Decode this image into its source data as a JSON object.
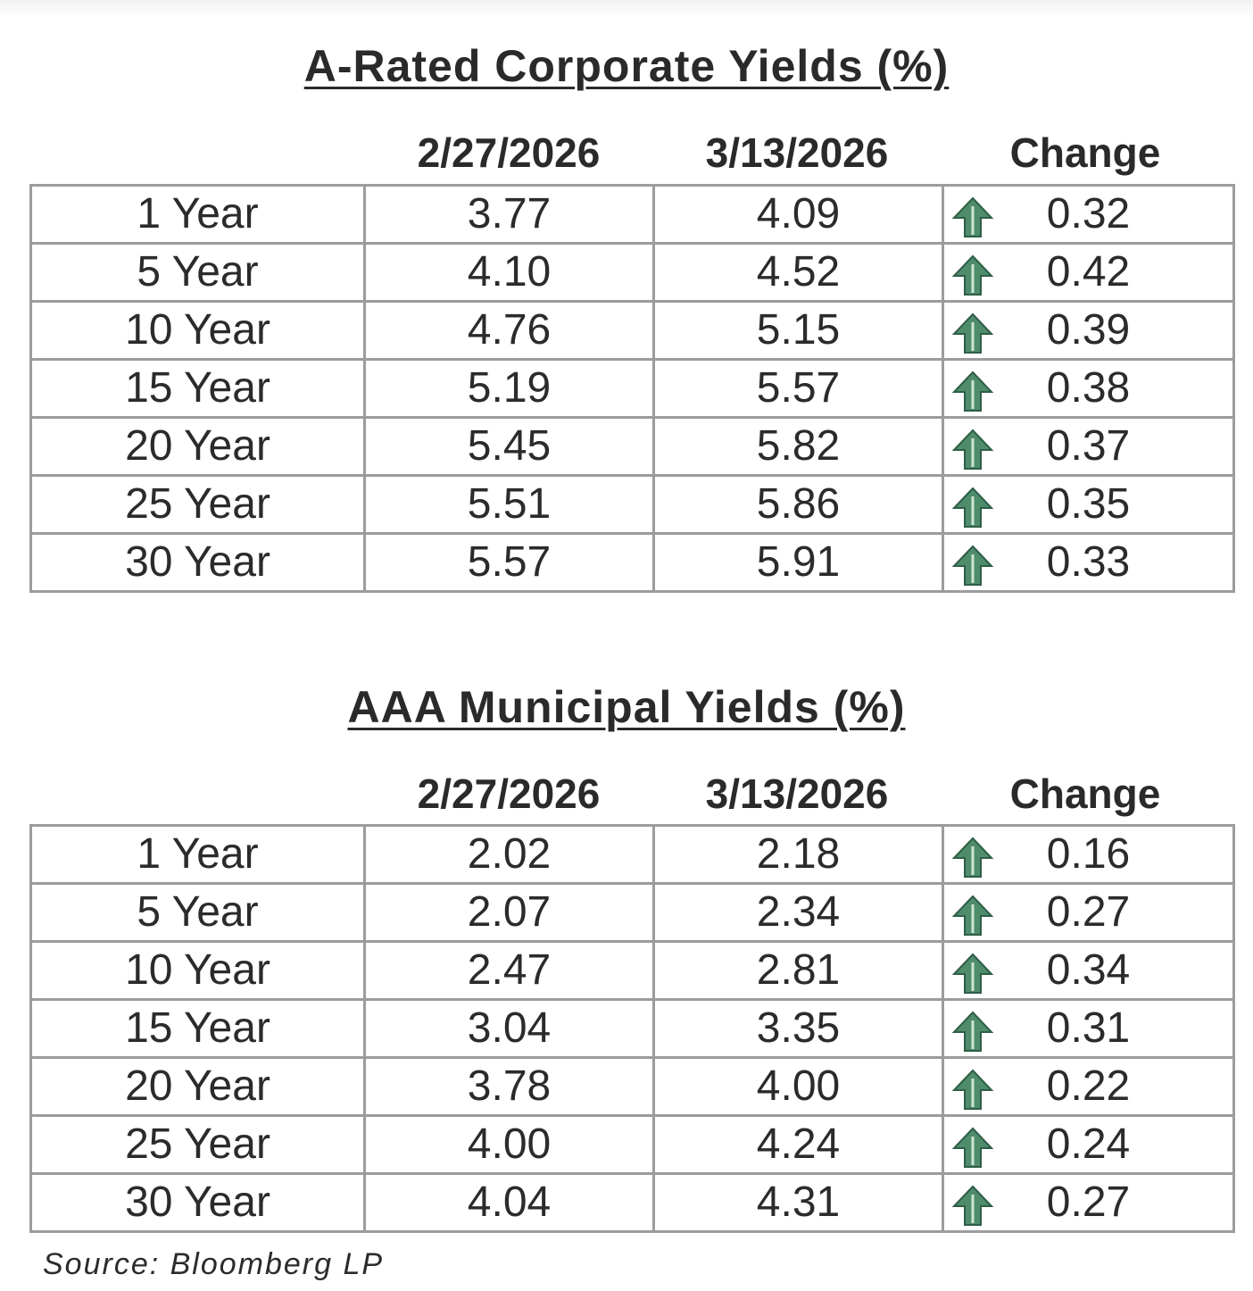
{
  "corporate": {
    "title": "A-Rated Corporate Yields (%)",
    "headers": [
      "2/27/2026",
      "3/13/2026",
      "Change"
    ],
    "rows": [
      {
        "term": "1 Year",
        "prev": "3.77",
        "curr": "4.09",
        "change": "0.32"
      },
      {
        "term": "5 Year",
        "prev": "4.10",
        "curr": "4.52",
        "change": "0.42"
      },
      {
        "term": "10 Year",
        "prev": "4.76",
        "curr": "5.15",
        "change": "0.39"
      },
      {
        "term": "15 Year",
        "prev": "5.19",
        "curr": "5.57",
        "change": "0.38"
      },
      {
        "term": "20 Year",
        "prev": "5.45",
        "curr": "5.82",
        "change": "0.37"
      },
      {
        "term": "25 Year",
        "prev": "5.51",
        "curr": "5.86",
        "change": "0.35"
      },
      {
        "term": "30 Year",
        "prev": "5.57",
        "curr": "5.91",
        "change": "0.33"
      }
    ]
  },
  "municipal": {
    "title": "AAA Municipal Yields (%)",
    "headers": [
      "2/27/2026",
      "3/13/2026",
      "Change"
    ],
    "rows": [
      {
        "term": "1 Year",
        "prev": "2.02",
        "curr": "2.18",
        "change": "0.16"
      },
      {
        "term": "5 Year",
        "prev": "2.07",
        "curr": "2.34",
        "change": "0.27"
      },
      {
        "term": "10 Year",
        "prev": "2.47",
        "curr": "2.81",
        "change": "0.34"
      },
      {
        "term": "15 Year",
        "prev": "3.04",
        "curr": "3.35",
        "change": "0.31"
      },
      {
        "term": "20 Year",
        "prev": "3.78",
        "curr": "4.00",
        "change": "0.22"
      },
      {
        "term": "25 Year",
        "prev": "4.00",
        "curr": "4.24",
        "change": "0.24"
      },
      {
        "term": "30 Year",
        "prev": "4.04",
        "curr": "4.31",
        "change": "0.27"
      }
    ]
  },
  "arrow_icon": "up-arrow-icon",
  "arrow_color": "#4e8c6c",
  "source": "Source: Bloomberg LP"
}
